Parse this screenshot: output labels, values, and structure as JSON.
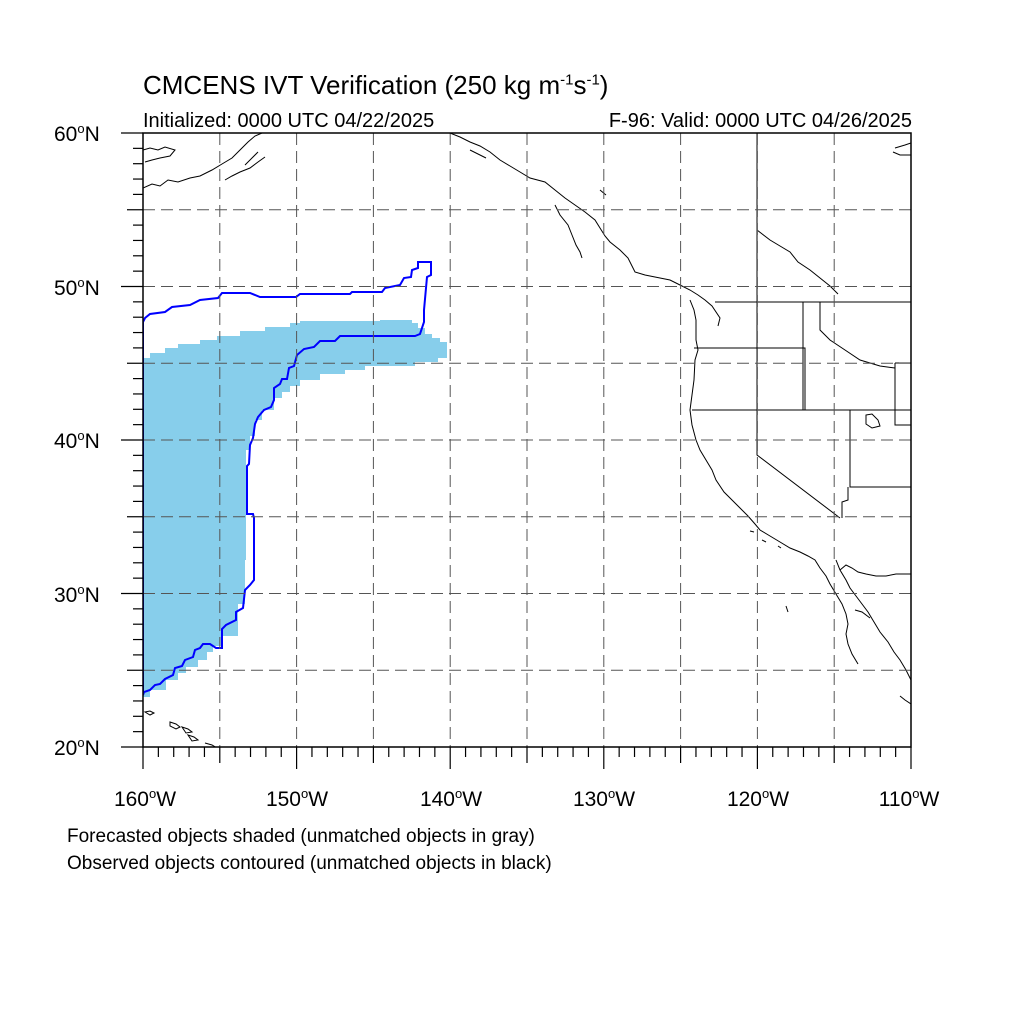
{
  "title": {
    "main": "CMCENS IVT Verification (250 kg m",
    "exp1": "-1",
    "mid": "s",
    "exp2": "-1",
    "close": ")"
  },
  "subtitle_left": "Initialized: 0000 UTC 04/22/2025",
  "subtitle_right": "F-96: Valid: 0000 UTC 04/26/2025",
  "lat_labels": [
    {
      "value": "60",
      "deg": "o",
      "hemi": "N"
    },
    {
      "value": "50",
      "deg": "o",
      "hemi": "N"
    },
    {
      "value": "40",
      "deg": "o",
      "hemi": "N"
    },
    {
      "value": "30",
      "deg": "o",
      "hemi": "N"
    },
    {
      "value": "20",
      "deg": "o",
      "hemi": "N"
    }
  ],
  "lon_labels": [
    {
      "value": "160",
      "deg": "o",
      "hemi": "W"
    },
    {
      "value": "150",
      "deg": "o",
      "hemi": "W"
    },
    {
      "value": "140",
      "deg": "o",
      "hemi": "W"
    },
    {
      "value": "130",
      "deg": "o",
      "hemi": "W"
    },
    {
      "value": "120",
      "deg": "o",
      "hemi": "W"
    },
    {
      "value": "110",
      "deg": "o",
      "hemi": "W"
    }
  ],
  "caption_line1": "Forecasted objects shaded (unmatched objects in gray)",
  "caption_line2": "Observed objects contoured (unmatched objects in black)",
  "colors": {
    "forecast_fill": "#87ceeb",
    "observed_contour": "#0000ff",
    "coastline": "#000000",
    "grid": "#555555"
  },
  "map_extent": {
    "lon_min": -160,
    "lon_max": -110,
    "lat_min": 20,
    "lat_max": 60
  },
  "grid_lines": {
    "lon_step_deg": 5,
    "lat_step_deg": 5
  }
}
